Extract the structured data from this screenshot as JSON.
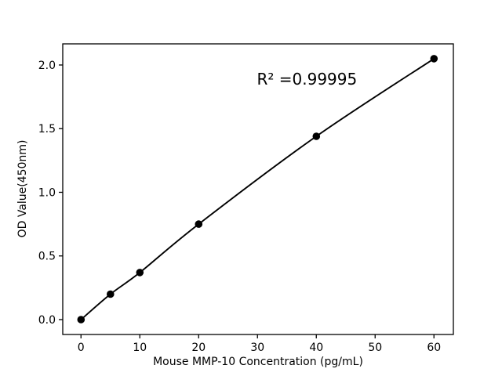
{
  "figure": {
    "background": "#ffffff",
    "foreground": "#000000"
  },
  "chart_data": {
    "type": "line",
    "title": "",
    "xlabel": "Mouse MMP-10 Concentration (pg/mL)",
    "ylabel": "OD Value(450nm)",
    "x": [
      0,
      5,
      10,
      20,
      40,
      60
    ],
    "y": [
      0.0,
      0.2,
      0.37,
      0.75,
      1.44,
      2.05
    ],
    "xticks": [
      "0",
      "10",
      "20",
      "30",
      "40",
      "50",
      "60"
    ],
    "xtick_values": [
      0,
      10,
      20,
      30,
      40,
      50,
      60
    ],
    "yticks": [
      "0.0",
      "0.5",
      "1.0",
      "1.5",
      "2.0"
    ],
    "ytick_values": [
      0.0,
      0.5,
      1.0,
      1.5,
      2.0
    ],
    "xlim": [
      -3.1,
      63.3
    ],
    "ylim": [
      -0.117,
      2.166
    ],
    "grid": false,
    "legend": "none",
    "line_color": "#000000",
    "marker_color": "#000000",
    "marker": "circle",
    "annotation": {
      "text": "R² =0.99995",
      "x": 29.9,
      "y": 1.846
    }
  }
}
